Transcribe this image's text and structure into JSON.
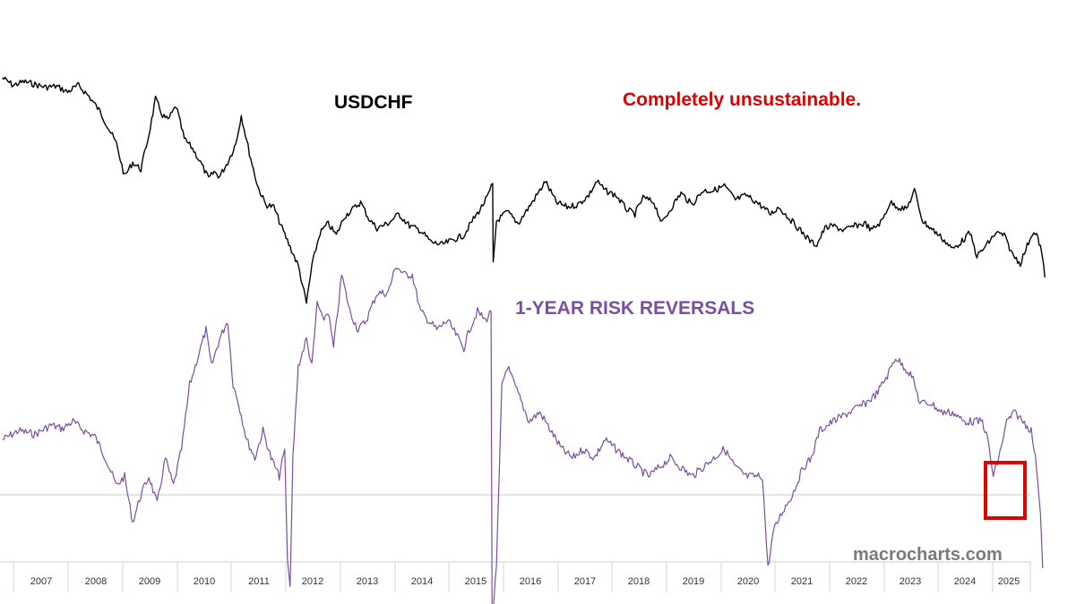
{
  "chart_data": {
    "type": "line",
    "x_ticks": [
      "2007",
      "2008",
      "2009",
      "2010",
      "2011",
      "2012",
      "2013",
      "2014",
      "2015",
      "2016",
      "2017",
      "2018",
      "2019",
      "2020",
      "2021",
      "2022",
      "2023",
      "2024",
      "2025"
    ],
    "series": [
      {
        "name": "USDCHF",
        "color": "#000000",
        "points": [
          [
            2006.0,
            1.24
          ],
          [
            2006.2,
            1.224
          ],
          [
            2006.4,
            1.232
          ],
          [
            2006.6,
            1.226
          ],
          [
            2006.8,
            1.22
          ],
          [
            2007.0,
            1.222
          ],
          [
            2007.2,
            1.21
          ],
          [
            2007.4,
            1.224
          ],
          [
            2007.6,
            1.2
          ],
          [
            2007.8,
            1.168
          ],
          [
            2007.95,
            1.134
          ],
          [
            2008.1,
            1.1
          ],
          [
            2008.25,
            1.03
          ],
          [
            2008.4,
            1.06
          ],
          [
            2008.55,
            1.045
          ],
          [
            2008.7,
            1.12
          ],
          [
            2008.82,
            1.195
          ],
          [
            2008.95,
            1.16
          ],
          [
            2009.05,
            1.15
          ],
          [
            2009.2,
            1.18
          ],
          [
            2009.35,
            1.11
          ],
          [
            2009.5,
            1.09
          ],
          [
            2009.65,
            1.06
          ],
          [
            2009.8,
            1.025
          ],
          [
            2009.9,
            1.04
          ],
          [
            2010.0,
            1.03
          ],
          [
            2010.15,
            1.06
          ],
          [
            2010.3,
            1.1
          ],
          [
            2010.4,
            1.16
          ],
          [
            2010.55,
            1.08
          ],
          [
            2010.7,
            1.01
          ],
          [
            2010.85,
            0.97
          ],
          [
            2011.0,
            0.965
          ],
          [
            2011.15,
            0.92
          ],
          [
            2011.3,
            0.88
          ],
          [
            2011.45,
            0.84
          ],
          [
            2011.6,
            0.76
          ],
          [
            2011.7,
            0.84
          ],
          [
            2011.85,
            0.91
          ],
          [
            2012.0,
            0.93
          ],
          [
            2012.15,
            0.905
          ],
          [
            2012.3,
            0.945
          ],
          [
            2012.45,
            0.96
          ],
          [
            2012.6,
            0.975
          ],
          [
            2012.75,
            0.94
          ],
          [
            2012.9,
            0.92
          ],
          [
            2013.1,
            0.93
          ],
          [
            2013.3,
            0.95
          ],
          [
            2013.5,
            0.925
          ],
          [
            2013.7,
            0.915
          ],
          [
            2013.9,
            0.89
          ],
          [
            2014.1,
            0.885
          ],
          [
            2014.3,
            0.895
          ],
          [
            2014.5,
            0.905
          ],
          [
            2014.65,
            0.935
          ],
          [
            2014.8,
            0.96
          ],
          [
            2014.95,
            0.99
          ],
          [
            2015.03,
            1.015
          ],
          [
            2015.04,
            0.845
          ],
          [
            2015.1,
            0.935
          ],
          [
            2015.3,
            0.955
          ],
          [
            2015.5,
            0.93
          ],
          [
            2015.7,
            0.965
          ],
          [
            2015.9,
            1.0
          ],
          [
            2016.0,
            1.02
          ],
          [
            2016.2,
            0.975
          ],
          [
            2016.4,
            0.965
          ],
          [
            2016.6,
            0.97
          ],
          [
            2016.8,
            0.99
          ],
          [
            2016.95,
            1.02
          ],
          [
            2017.1,
            1.0
          ],
          [
            2017.3,
            0.99
          ],
          [
            2017.5,
            0.96
          ],
          [
            2017.65,
            0.95
          ],
          [
            2017.8,
            0.985
          ],
          [
            2018.0,
            0.975
          ],
          [
            2018.15,
            0.93
          ],
          [
            2018.3,
            0.96
          ],
          [
            2018.5,
            0.995
          ],
          [
            2018.7,
            0.97
          ],
          [
            2018.9,
            1.0
          ],
          [
            2019.1,
            1.0
          ],
          [
            2019.3,
            1.01
          ],
          [
            2019.5,
            0.98
          ],
          [
            2019.7,
            0.99
          ],
          [
            2019.9,
            0.975
          ],
          [
            2020.0,
            0.965
          ],
          [
            2020.15,
            0.95
          ],
          [
            2020.3,
            0.965
          ],
          [
            2020.5,
            0.94
          ],
          [
            2020.7,
            0.915
          ],
          [
            2020.9,
            0.89
          ],
          [
            2021.0,
            0.885
          ],
          [
            2021.15,
            0.92
          ],
          [
            2021.3,
            0.925
          ],
          [
            2021.5,
            0.915
          ],
          [
            2021.7,
            0.925
          ],
          [
            2021.9,
            0.93
          ],
          [
            2022.0,
            0.915
          ],
          [
            2022.2,
            0.935
          ],
          [
            2022.35,
            0.975
          ],
          [
            2022.5,
            0.965
          ],
          [
            2022.65,
            0.96
          ],
          [
            2022.8,
            1.0
          ],
          [
            2022.95,
            0.935
          ],
          [
            2023.1,
            0.92
          ],
          [
            2023.3,
            0.9
          ],
          [
            2023.5,
            0.875
          ],
          [
            2023.7,
            0.895
          ],
          [
            2023.82,
            0.91
          ],
          [
            2023.95,
            0.86
          ],
          [
            2024.1,
            0.88
          ],
          [
            2024.3,
            0.91
          ],
          [
            2024.45,
            0.905
          ],
          [
            2024.6,
            0.865
          ],
          [
            2024.75,
            0.845
          ],
          [
            2024.9,
            0.89
          ],
          [
            2024.97,
            0.91
          ],
          [
            2025.05,
            0.905
          ],
          [
            2025.12,
            0.88
          ],
          [
            2025.18,
            0.84
          ],
          [
            2025.2,
            0.815
          ]
        ]
      },
      {
        "name": "1-YEAR RISK REVERSALS",
        "color": "#7a4fa3",
        "points": [
          [
            2006.0,
            0.3
          ],
          [
            2006.3,
            0.35
          ],
          [
            2006.6,
            0.33
          ],
          [
            2006.9,
            0.38
          ],
          [
            2007.1,
            0.36
          ],
          [
            2007.3,
            0.4
          ],
          [
            2007.5,
            0.35
          ],
          [
            2007.7,
            0.32
          ],
          [
            2007.9,
            0.2
          ],
          [
            2008.1,
            0.05
          ],
          [
            2008.25,
            0.1
          ],
          [
            2008.4,
            -0.15
          ],
          [
            2008.55,
            0.0
          ],
          [
            2008.7,
            0.1
          ],
          [
            2008.85,
            -0.05
          ],
          [
            2009.0,
            0.2
          ],
          [
            2009.15,
            0.05
          ],
          [
            2009.3,
            0.25
          ],
          [
            2009.45,
            0.6
          ],
          [
            2009.6,
            0.75
          ],
          [
            2009.75,
            0.9
          ],
          [
            2009.85,
            0.7
          ],
          [
            2010.0,
            0.85
          ],
          [
            2010.15,
            0.95
          ],
          [
            2010.25,
            0.6
          ],
          [
            2010.35,
            0.5
          ],
          [
            2010.5,
            0.3
          ],
          [
            2010.65,
            0.2
          ],
          [
            2010.8,
            0.35
          ],
          [
            2010.95,
            0.2
          ],
          [
            2011.1,
            0.1
          ],
          [
            2011.2,
            0.25
          ],
          [
            2011.25,
            -0.35
          ],
          [
            2011.3,
            -0.5
          ],
          [
            2011.35,
            0.2
          ],
          [
            2011.45,
            0.7
          ],
          [
            2011.6,
            0.85
          ],
          [
            2011.7,
            0.7
          ],
          [
            2011.8,
            1.05
          ],
          [
            2011.9,
            0.95
          ],
          [
            2012.0,
            1.0
          ],
          [
            2012.1,
            0.8
          ],
          [
            2012.25,
            1.2
          ],
          [
            2012.4,
            1.0
          ],
          [
            2012.55,
            0.9
          ],
          [
            2012.7,
            0.95
          ],
          [
            2012.9,
            1.1
          ],
          [
            2013.1,
            1.1
          ],
          [
            2013.25,
            1.25
          ],
          [
            2013.4,
            1.2
          ],
          [
            2013.55,
            1.2
          ],
          [
            2013.7,
            1.0
          ],
          [
            2013.85,
            0.95
          ],
          [
            2014.0,
            0.9
          ],
          [
            2014.2,
            0.95
          ],
          [
            2014.4,
            0.85
          ],
          [
            2014.5,
            0.8
          ],
          [
            2014.6,
            0.9
          ],
          [
            2014.75,
            1.0
          ],
          [
            2014.9,
            0.95
          ],
          [
            2015.0,
            1.0
          ],
          [
            2015.02,
            -0.7
          ],
          [
            2015.1,
            -0.4
          ],
          [
            2015.2,
            0.6
          ],
          [
            2015.3,
            0.7
          ],
          [
            2015.5,
            0.55
          ],
          [
            2015.7,
            0.4
          ],
          [
            2015.9,
            0.45
          ],
          [
            2016.1,
            0.35
          ],
          [
            2016.3,
            0.25
          ],
          [
            2016.5,
            0.2
          ],
          [
            2016.7,
            0.25
          ],
          [
            2016.9,
            0.2
          ],
          [
            2017.1,
            0.3
          ],
          [
            2017.3,
            0.25
          ],
          [
            2017.5,
            0.2
          ],
          [
            2017.7,
            0.15
          ],
          [
            2017.9,
            0.1
          ],
          [
            2018.1,
            0.15
          ],
          [
            2018.3,
            0.2
          ],
          [
            2018.5,
            0.15
          ],
          [
            2018.7,
            0.1
          ],
          [
            2018.9,
            0.15
          ],
          [
            2019.1,
            0.2
          ],
          [
            2019.3,
            0.25
          ],
          [
            2019.5,
            0.15
          ],
          [
            2019.7,
            0.1
          ],
          [
            2019.9,
            0.1
          ],
          [
            2020.0,
            0.1
          ],
          [
            2020.1,
            -0.4
          ],
          [
            2020.2,
            -0.2
          ],
          [
            2020.35,
            -0.1
          ],
          [
            2020.55,
            0.0
          ],
          [
            2020.75,
            0.15
          ],
          [
            2020.9,
            0.2
          ],
          [
            2021.05,
            0.35
          ],
          [
            2021.3,
            0.4
          ],
          [
            2021.6,
            0.45
          ],
          [
            2021.9,
            0.5
          ],
          [
            2022.1,
            0.55
          ],
          [
            2022.3,
            0.65
          ],
          [
            2022.45,
            0.75
          ],
          [
            2022.6,
            0.7
          ],
          [
            2022.75,
            0.65
          ],
          [
            2022.9,
            0.5
          ],
          [
            2023.1,
            0.5
          ],
          [
            2023.3,
            0.45
          ],
          [
            2023.5,
            0.45
          ],
          [
            2023.7,
            0.4
          ],
          [
            2023.9,
            0.4
          ],
          [
            2024.05,
            0.4
          ],
          [
            2024.15,
            0.3
          ],
          [
            2024.25,
            0.1
          ],
          [
            2024.35,
            0.2
          ],
          [
            2024.5,
            0.4
          ],
          [
            2024.65,
            0.45
          ],
          [
            2024.8,
            0.4
          ],
          [
            2024.95,
            0.35
          ],
          [
            2025.05,
            0.15
          ],
          [
            2025.12,
            -0.1
          ],
          [
            2025.16,
            -0.4
          ]
        ]
      }
    ],
    "annotations": [
      "USDCHF",
      "1-YEAR RISK REVERSALS",
      "Completely unsustainable."
    ],
    "grid": false
  },
  "labels": {
    "usdchf": "USDCHF",
    "risk_reversals": "1-YEAR RISK REVERSALS",
    "note": "Completely unsustainable.",
    "watermark": "macrocharts.com"
  },
  "colors": {
    "usdchf_line": "#000000",
    "rr_line": "#7a4fa3",
    "note_text": "#e00000",
    "highlight_box": "#e00000",
    "zero_line": "#c8c8c8"
  }
}
